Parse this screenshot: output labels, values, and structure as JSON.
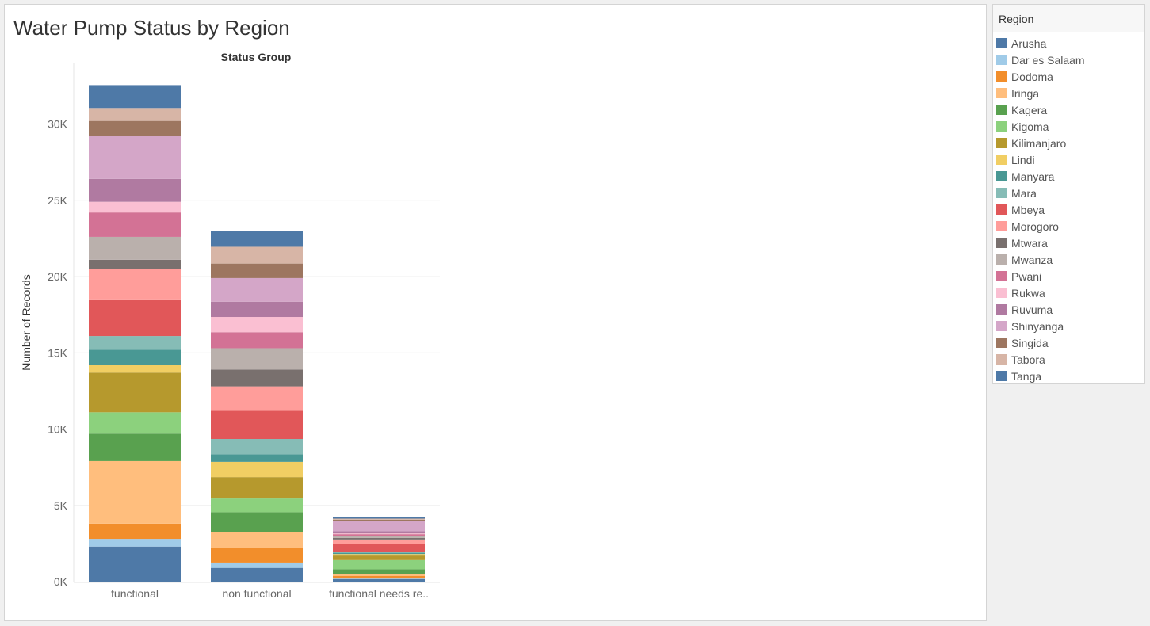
{
  "title": "Water Pump Status by Region",
  "legend": {
    "title": "Region"
  },
  "chart_data": {
    "type": "bar",
    "stacked": true,
    "column_header": "Status Group",
    "categories": [
      "functional",
      "non functional",
      "functional needs re.."
    ],
    "ylabel": "Number of Records",
    "ylim": [
      0,
      33000
    ],
    "yticks": [
      0,
      5000,
      10000,
      15000,
      20000,
      25000,
      30000
    ],
    "ytick_labels": [
      "0K",
      "5K",
      "10K",
      "15K",
      "20K",
      "25K",
      "30K"
    ],
    "grid": true,
    "legend_position": "right",
    "series": [
      {
        "name": "Arusha",
        "color": "#4e79a7",
        "values": [
          2300,
          900,
          170
        ]
      },
      {
        "name": "Dar es Salaam",
        "color": "#a0cbe8",
        "values": [
          500,
          350,
          30
        ]
      },
      {
        "name": "Dodoma",
        "color": "#f28e2b",
        "values": [
          1000,
          950,
          180
        ]
      },
      {
        "name": "Iringa",
        "color": "#ffbe7d",
        "values": [
          4100,
          1050,
          130
        ]
      },
      {
        "name": "Kagera",
        "color": "#59a14f",
        "values": [
          1800,
          1300,
          300
        ]
      },
      {
        "name": "Kigoma",
        "color": "#8cd17d",
        "values": [
          1400,
          900,
          600
        ]
      },
      {
        "name": "Kilimanjaro",
        "color": "#b6992d",
        "values": [
          2600,
          1400,
          300
        ]
      },
      {
        "name": "Lindi",
        "color": "#f1ce63",
        "values": [
          500,
          1000,
          100
        ]
      },
      {
        "name": "Manyara",
        "color": "#499894",
        "values": [
          1000,
          500,
          80
        ]
      },
      {
        "name": "Mara",
        "color": "#86bcb6",
        "values": [
          900,
          1000,
          70
        ]
      },
      {
        "name": "Mbeya",
        "color": "#e15759",
        "values": [
          2400,
          1850,
          500
        ]
      },
      {
        "name": "Morogoro",
        "color": "#ff9d9a",
        "values": [
          2000,
          1600,
          300
        ]
      },
      {
        "name": "Mtwara",
        "color": "#79706e",
        "values": [
          600,
          1100,
          100
        ]
      },
      {
        "name": "Mwanza",
        "color": "#bab0ac",
        "values": [
          1500,
          1400,
          150
        ]
      },
      {
        "name": "Pwani",
        "color": "#d37295",
        "values": [
          1600,
          1050,
          100
        ]
      },
      {
        "name": "Rukwa",
        "color": "#fabfd2",
        "values": [
          700,
          1000,
          50
        ]
      },
      {
        "name": "Ruvuma",
        "color": "#b07aa1",
        "values": [
          1500,
          1000,
          150
        ]
      },
      {
        "name": "Shinyanga",
        "color": "#d4a6c8",
        "values": [
          2800,
          1550,
          650
        ]
      },
      {
        "name": "Singida",
        "color": "#9d7660",
        "values": [
          1000,
          950,
          100
        ]
      },
      {
        "name": "Tabora",
        "color": "#d7b5a6",
        "values": [
          850,
          1100,
          70
        ]
      },
      {
        "name": "Tanga",
        "color": "#4e79a7",
        "values": [
          1500,
          1050,
          130
        ]
      }
    ]
  }
}
